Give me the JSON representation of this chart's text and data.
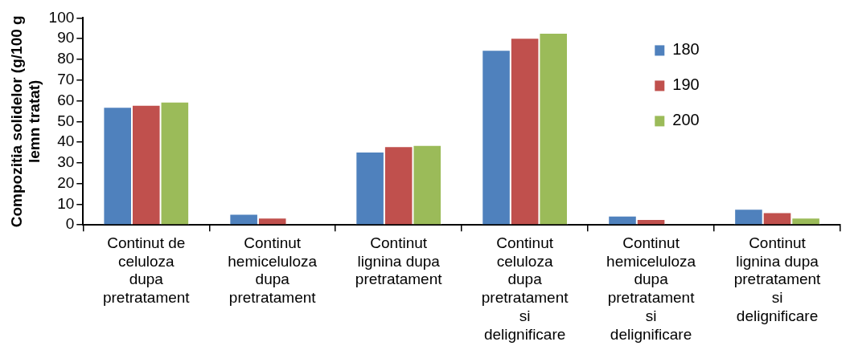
{
  "chart_data": {
    "type": "bar",
    "ylabel": "Compozitia solidelor (g/100 g lemn tratat)",
    "categories": [
      "Continut de celuloza dupa pretratament",
      "Continut hemiceluloza dupa pretratament",
      "Continut lignina dupa pretratament",
      "Continut celuloza dupa pretratament si delignificare",
      "Continut hemiceluloza dupa pretratament si delignificare",
      "Continut lignina dupa pretratament si delignificare"
    ],
    "series": [
      {
        "name": "180",
        "color": "#4f81bd",
        "values": [
          57,
          5.3,
          35.4,
          84.5,
          4.4,
          7.7
        ]
      },
      {
        "name": "190",
        "color": "#c0504d",
        "values": [
          58,
          3.5,
          38,
          90.4,
          2.8,
          6.1
        ]
      },
      {
        "name": "200",
        "color": "#9bbb59",
        "values": [
          59.5,
          null,
          38.6,
          92.8,
          null,
          3.5
        ]
      }
    ],
    "ylim": [
      0,
      100
    ],
    "yticks": [
      0,
      10,
      20,
      30,
      40,
      50,
      60,
      70,
      80,
      90,
      100
    ],
    "grid": false,
    "legend": "top right"
  }
}
